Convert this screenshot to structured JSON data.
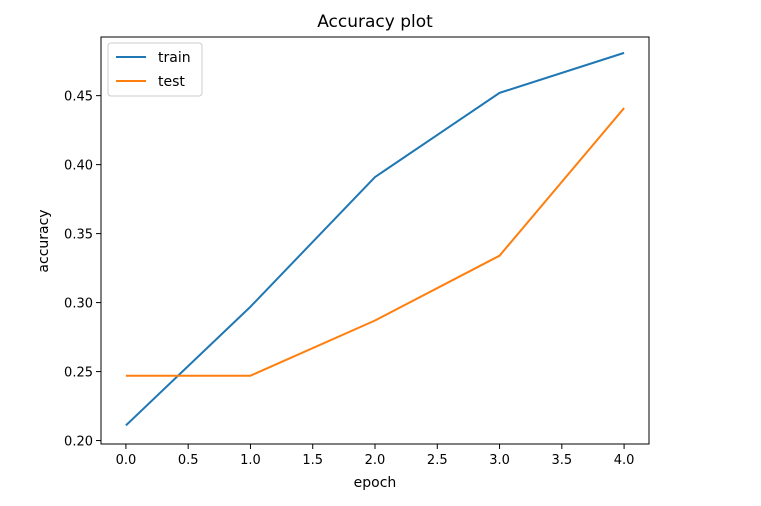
{
  "chart_data": {
    "type": "line",
    "title": "Accuracy plot",
    "xlabel": "epoch",
    "ylabel": "accuracy",
    "xlim": [
      -0.2,
      4.2
    ],
    "ylim": [
      0.1975,
      0.4925
    ],
    "xticks": [
      "0.0",
      "0.5",
      "1.0",
      "1.5",
      "2.0",
      "2.5",
      "3.0",
      "3.5",
      "4.0"
    ],
    "yticks": [
      "0.20",
      "0.25",
      "0.30",
      "0.35",
      "0.40",
      "0.45"
    ],
    "x": [
      0,
      1,
      2,
      3,
      4
    ],
    "series": [
      {
        "name": "train",
        "color": "#1f77b4",
        "values": [
          0.211,
          0.297,
          0.391,
          0.452,
          0.481
        ]
      },
      {
        "name": "test",
        "color": "#ff7f0e",
        "values": [
          0.247,
          0.247,
          0.287,
          0.334,
          0.441
        ]
      }
    ],
    "legend": "upper-left",
    "grid": false
  }
}
